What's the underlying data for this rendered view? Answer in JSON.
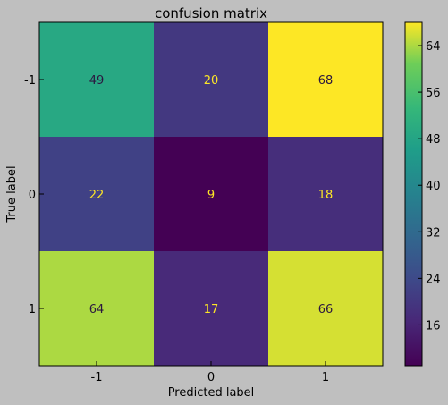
{
  "chart_data": {
    "type": "heatmap",
    "title": "confusion matrix",
    "xlabel": "Predicted label",
    "ylabel": "True label",
    "x_categories": [
      "-1",
      "0",
      "1"
    ],
    "y_categories": [
      "-1",
      "0",
      "1"
    ],
    "values": [
      [
        49,
        20,
        68
      ],
      [
        22,
        9,
        18
      ],
      [
        64,
        17,
        66
      ]
    ],
    "colormap": "viridis",
    "value_range": [
      9,
      68
    ],
    "colorbar": {
      "ticks": [
        "16",
        "24",
        "32",
        "40",
        "48",
        "56",
        "64"
      ]
    },
    "grid": false,
    "background": "#bfbfbf"
  }
}
